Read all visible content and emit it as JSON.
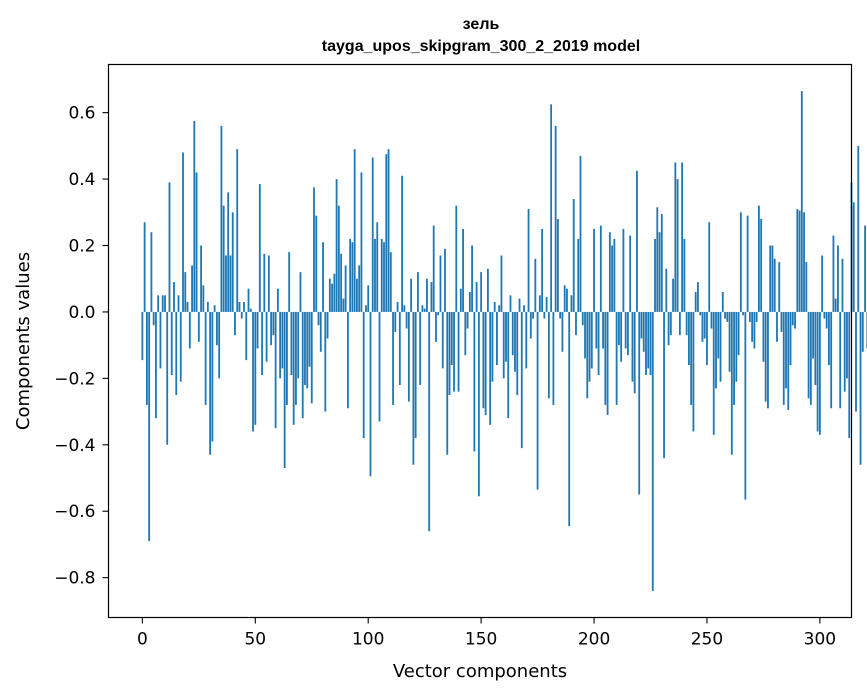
{
  "chart_data": {
    "type": "bar",
    "title": "зель",
    "subtitle": "tayga_upos_skipgram_300_2_2019 model",
    "xlabel": "Vector components",
    "ylabel": "Components values",
    "xlim": [
      -15,
      314
    ],
    "ylim": [
      -0.92,
      0.745
    ],
    "xticks": [
      0,
      50,
      100,
      150,
      200,
      250,
      300
    ],
    "xtick_labels": [
      "0",
      "50",
      "100",
      "150",
      "200",
      "250",
      "300"
    ],
    "yticks": [
      -0.8,
      -0.6,
      -0.4,
      -0.2,
      0.0,
      0.2,
      0.4,
      0.6
    ],
    "ytick_labels": [
      "−0.8",
      "−0.6",
      "−0.4",
      "−0.2",
      "0.0",
      "0.2",
      "0.4",
      "0.6"
    ],
    "bar_color": "#1f77b4",
    "grid": false,
    "values": [
      -0.145,
      0.27,
      -0.28,
      -0.69,
      0.24,
      -0.04,
      -0.32,
      0.05,
      -0.17,
      0.05,
      0.05,
      -0.4,
      0.39,
      -0.19,
      0.09,
      -0.25,
      0.05,
      -0.21,
      0.48,
      0.12,
      0.03,
      -0.11,
      0.14,
      0.575,
      0.42,
      -0.09,
      0.2,
      0.08,
      -0.28,
      0.03,
      -0.43,
      -0.39,
      0.02,
      -0.1,
      -0.2,
      0.56,
      0.32,
      0.17,
      0.36,
      0.17,
      0.3,
      -0.07,
      0.49,
      0.03,
      -0.02,
      0.03,
      -0.145,
      0.07,
      0.01,
      -0.36,
      -0.34,
      -0.11,
      0.385,
      -0.19,
      0.175,
      -0.15,
      0.17,
      -0.1,
      -0.07,
      -0.35,
      0.07,
      -0.2,
      -0.17,
      -0.47,
      -0.28,
      0.18,
      -0.19,
      -0.34,
      -0.28,
      -0.2,
      0.12,
      -0.32,
      -0.22,
      -0.23,
      -0.165,
      -0.275,
      0.375,
      0.29,
      -0.04,
      -0.12,
      0.21,
      -0.3,
      -0.08,
      0.1,
      0.085,
      0.115,
      0.4,
      0.32,
      0.175,
      0.04,
      0.14,
      -0.29,
      0.22,
      0.21,
      0.49,
      0.1,
      0.14,
      0.42,
      -0.38,
      0.02,
      0.08,
      -0.495,
      0.465,
      0.22,
      0.27,
      -0.33,
      0.22,
      0.21,
      0.475,
      0.49,
      0.18,
      -0.28,
      -0.06,
      0.03,
      -0.22,
      0.41,
      0.02,
      -0.05,
      -0.27,
      0.1,
      -0.46,
      -0.38,
      0.12,
      -0.22,
      0.02,
      0.01,
      0.1,
      -0.66,
      0.09,
      0.26,
      -0.09,
      -0.01,
      0.17,
      -0.17,
      0.19,
      -0.43,
      -0.25,
      -0.16,
      -0.24,
      0.32,
      -0.24,
      0.07,
      0.25,
      -0.13,
      -0.05,
      0.06,
      0.2,
      -0.42,
      0.09,
      -0.555,
      0.12,
      -0.29,
      -0.31,
      0.13,
      -0.34,
      -0.21,
      0.03,
      -0.16,
      0.02,
      0.17,
      -0.2,
      -0.15,
      -0.32,
      0.05,
      -0.13,
      -0.18,
      -0.25,
      0.04,
      -0.41,
      0.02,
      -0.17,
      0.31,
      -0.08,
      -0.02,
      0.16,
      -0.535,
      0.05,
      0.25,
      -0.02,
      0.045,
      -0.26,
      0.625,
      -0.28,
      0.56,
      0.28,
      -0.02,
      -0.12,
      0.08,
      0.07,
      -0.645,
      0.05,
      0.34,
      -0.07,
      0.22,
      0.47,
      -0.04,
      -0.14,
      -0.26,
      -0.21,
      -0.17,
      0.25,
      -0.11,
      -0.19,
      0.26,
      -0.11,
      -0.28,
      -0.31,
      0.24,
      0.2,
      0.22,
      -0.28,
      -0.1,
      -0.15,
      0.25,
      -0.11,
      -0.13,
      0.23,
      -0.21,
      -0.245,
      0.425,
      -0.55,
      -0.08,
      -0.12,
      -0.19,
      -0.17,
      -0.19,
      -0.84,
      0.22,
      0.315,
      0.24,
      0.295,
      -0.44,
      0.13,
      -0.1,
      -0.07,
      0.1,
      0.45,
      0.4,
      -0.07,
      0.45,
      0.22,
      -0.07,
      -0.16,
      -0.28,
      -0.36,
      0.06,
      0.09,
      -0.01,
      -0.09,
      -0.08,
      -0.16,
      0.27,
      -0.05,
      -0.37,
      -0.23,
      -0.14,
      -0.21,
      0.06,
      -0.02,
      -0.03,
      -0.18,
      -0.43,
      -0.28,
      -0.21,
      -0.13,
      0.3,
      -0.01,
      -0.565,
      0.29,
      -0.03,
      -0.09,
      -0.11,
      -0.03,
      0.32,
      0.28,
      -0.15,
      -0.27,
      -0.29,
      0.2,
      0.2,
      0.16,
      -0.09,
      0.15,
      -0.06,
      -0.28,
      -0.23,
      -0.295,
      -0.16,
      -0.04,
      -0.05,
      0.31,
      0.305,
      0.665,
      0.3,
      0.15,
      -0.26,
      -0.28,
      -0.14,
      -0.22,
      -0.36,
      -0.37,
      0.17,
      -0.02,
      -0.05,
      -0.16,
      -0.29,
      0.23,
      0.04,
      0.2,
      -0.29,
      0.16,
      -0.24,
      -0.2,
      -0.38,
      0.39,
      0.33,
      -0.3,
      0.5,
      -0.46,
      -0.12,
      0.26,
      -0.11
    ]
  }
}
